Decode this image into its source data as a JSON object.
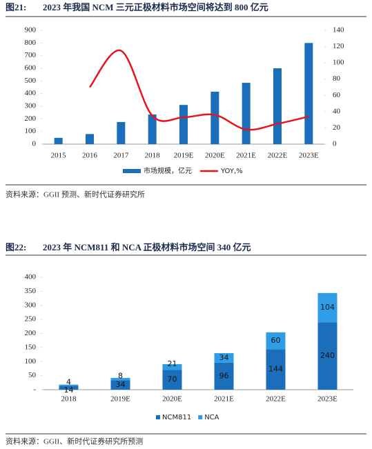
{
  "chart_data": [
    {
      "type": "bar",
      "figure_label": "图21:",
      "title": "2023 年我国 NCM 三元正极材料市场空间将达到 800 亿元",
      "categories": [
        "2015",
        "2016",
        "2017",
        "2018",
        "2019E",
        "2020E",
        "2021E",
        "2022E",
        "2023E"
      ],
      "series": [
        {
          "name": "市场规模，亿元",
          "type": "bar",
          "color": "#1b6fba",
          "values": [
            50,
            80,
            175,
            235,
            310,
            415,
            485,
            600,
            800
          ]
        },
        {
          "name": "YOY,%",
          "type": "line",
          "axis": "y2",
          "color": "#e8141c",
          "values": [
            null,
            70,
            115,
            35,
            33,
            36,
            18,
            25,
            34
          ]
        }
      ],
      "ylim": [
        0,
        900
      ],
      "yticks": [
        0,
        100,
        200,
        300,
        400,
        500,
        600,
        700,
        800,
        900
      ],
      "y2lim": [
        0,
        140
      ],
      "y2ticks": [
        0,
        20,
        40,
        60,
        80,
        100,
        120,
        140
      ],
      "source": "资料来源：GGII 预测、新时代证券研究所"
    },
    {
      "type": "stacked_bar",
      "figure_label": "图22:",
      "title": "2023 年 NCM811 和 NCA 正极材料市场空间 340 亿元",
      "categories": [
        "2018",
        "2019E",
        "2020E",
        "2021E",
        "2022E",
        "2023E"
      ],
      "series": [
        {
          "name": "NCM811",
          "color": "#1b6fba",
          "values": [
            14,
            34,
            70,
            96,
            144,
            240
          ]
        },
        {
          "name": "NCA",
          "color": "#2f9ce8",
          "values": [
            4,
            8,
            21,
            34,
            60,
            104
          ]
        }
      ],
      "ylim": [
        0,
        400
      ],
      "yticks": [
        {
          "value": 0,
          "label": "-"
        },
        50,
        100,
        150,
        200,
        250,
        300,
        350,
        400
      ],
      "source": "资料来源：GGII、新时代证券研究所预测"
    }
  ]
}
